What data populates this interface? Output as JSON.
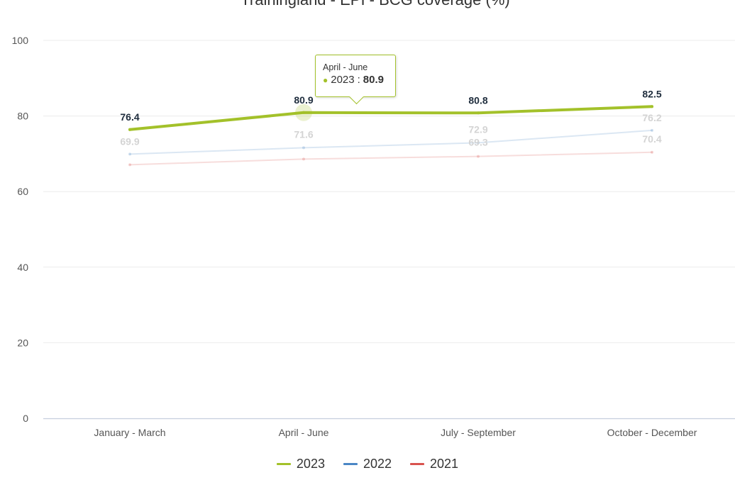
{
  "chart_data": {
    "type": "line",
    "title": "Trainingland - EPI - BCG coverage (%)",
    "xlabel": "",
    "ylabel": "",
    "categories": [
      "January - March",
      "April - June",
      "July - September",
      "October - December"
    ],
    "ylim": [
      0,
      100
    ],
    "yticks": [
      0,
      20,
      40,
      60,
      80,
      100
    ],
    "grid": true,
    "legend_position": "bottom-center",
    "series": [
      {
        "name": "2023",
        "values": [
          76.4,
          80.9,
          80.8,
          82.5
        ],
        "color": "#a3c12a",
        "emphasis": "active"
      },
      {
        "name": "2022",
        "values": [
          69.9,
          71.6,
          72.9,
          76.2
        ],
        "color": "#4a86c5",
        "emphasis": "faded"
      },
      {
        "name": "2021",
        "values": [
          67.1,
          68.6,
          69.3,
          70.4
        ],
        "color": "#d9534f",
        "emphasis": "faded"
      }
    ],
    "shown_data_labels": {
      "2023": [
        "76.4",
        "80.9",
        "80.8",
        "82.5"
      ],
      "2022": [
        "69.9",
        "71.6",
        "72.9",
        "76.2"
      ],
      "2021": [
        "",
        "",
        "69.3",
        "70.4"
      ]
    }
  },
  "tooltip": {
    "header": "April - June",
    "series": "2023",
    "value": "80.9",
    "separator": ": "
  }
}
